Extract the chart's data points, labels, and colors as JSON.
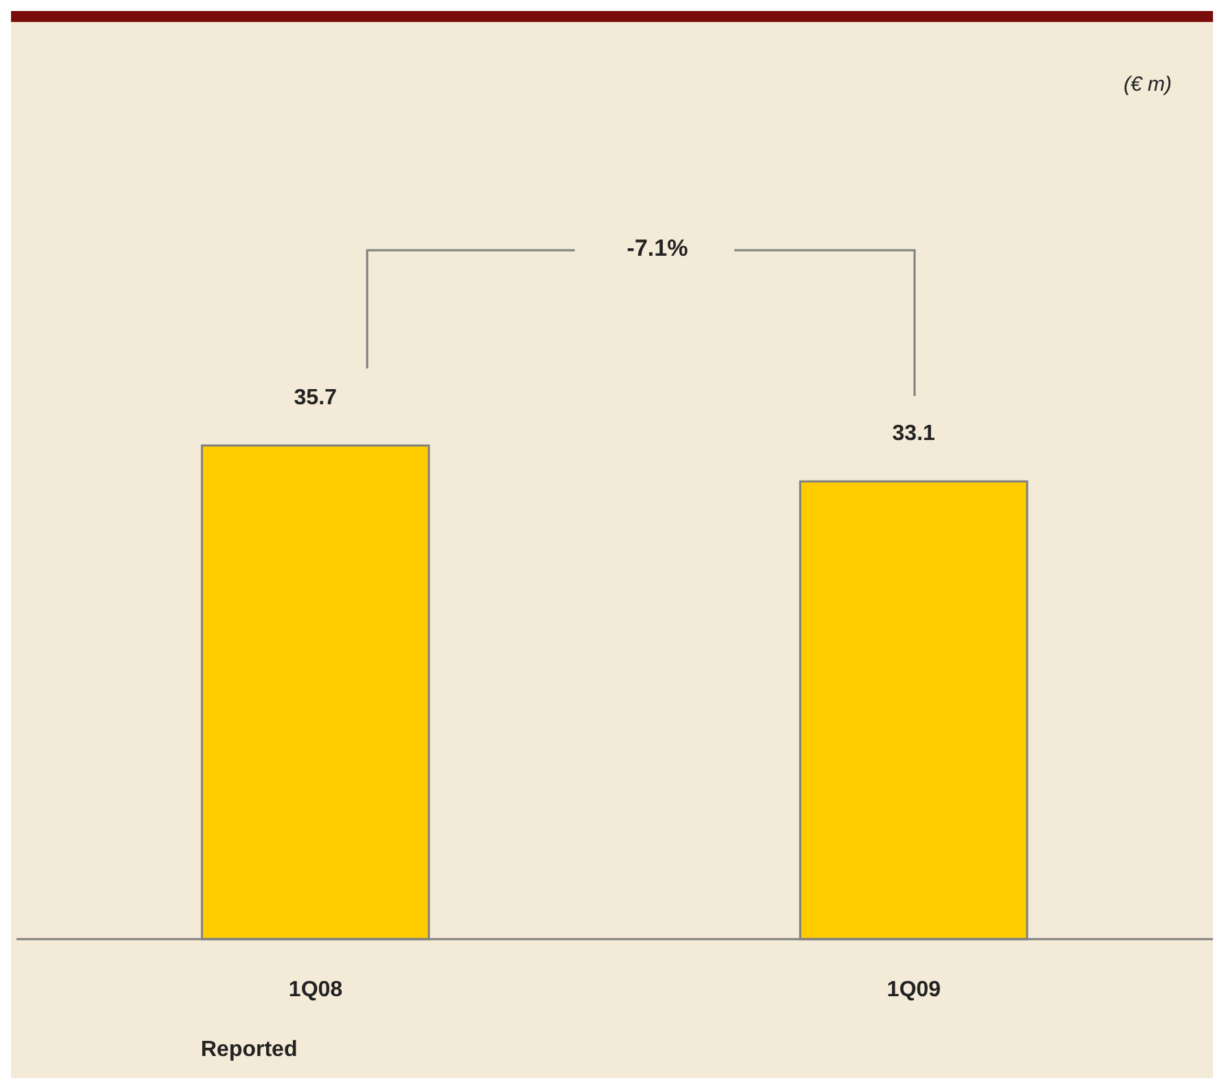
{
  "chart_data": {
    "type": "bar",
    "categories": [
      "1Q08",
      "1Q09"
    ],
    "values": [
      35.7,
      33.1
    ],
    "color": "#ffcc00",
    "data_labels": true,
    "annotations": [
      "-7.1%",
      "Reported",
      "(€ m)"
    ]
  }
}
